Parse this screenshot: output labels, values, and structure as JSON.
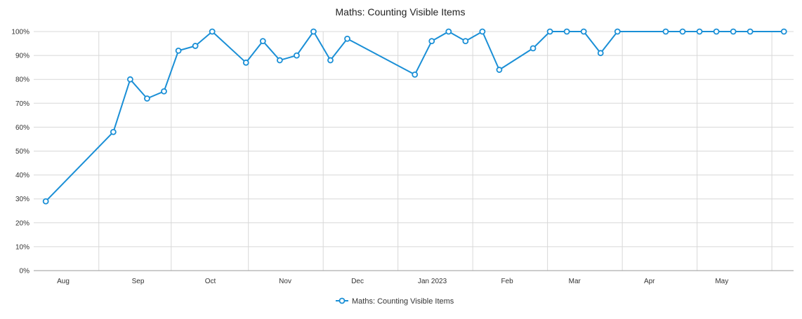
{
  "chart_data": {
    "type": "line",
    "title": "Maths: Counting Visible Items",
    "xlabel": "",
    "ylabel": "",
    "ylim": [
      0,
      100
    ],
    "y_ticks": [
      0,
      10,
      20,
      30,
      40,
      50,
      60,
      70,
      80,
      90,
      100
    ],
    "y_tick_suffix": "%",
    "x_range": [
      "2022-07-25",
      "2023-06-05"
    ],
    "x_ticks": [
      {
        "date": "2022-08-01",
        "label": "Aug"
      },
      {
        "date": "2022-09-01",
        "label": "Sep"
      },
      {
        "date": "2022-10-01",
        "label": "Oct"
      },
      {
        "date": "2022-11-01",
        "label": "Nov"
      },
      {
        "date": "2022-12-01",
        "label": "Dec"
      },
      {
        "date": "2023-01-01",
        "label": "Jan 2023"
      },
      {
        "date": "2023-02-01",
        "label": "Feb"
      },
      {
        "date": "2023-03-01",
        "label": "Mar"
      },
      {
        "date": "2023-04-01",
        "label": "Apr"
      },
      {
        "date": "2023-05-01",
        "label": "May"
      }
    ],
    "week_gridlines": [
      "2022-08-21",
      "2022-09-20",
      "2022-10-22",
      "2022-11-22",
      "2022-12-23",
      "2023-01-23",
      "2023-02-23",
      "2023-03-26",
      "2023-04-26",
      "2023-05-27"
    ],
    "grid": true,
    "legend": "bottom-center",
    "series": [
      {
        "name": "Maths: Counting Visible Items",
        "color": "#1a8fd6",
        "x": [
          "2022-07-30",
          "2022-08-27",
          "2022-09-03",
          "2022-09-10",
          "2022-09-17",
          "2022-09-23",
          "2022-09-30",
          "2022-10-07",
          "2022-10-21",
          "2022-10-28",
          "2022-11-04",
          "2022-11-11",
          "2022-11-18",
          "2022-11-25",
          "2022-12-02",
          "2022-12-30",
          "2023-01-06",
          "2023-01-13",
          "2023-01-20",
          "2023-01-27",
          "2023-02-03",
          "2023-02-17",
          "2023-02-24",
          "2023-03-03",
          "2023-03-10",
          "2023-03-17",
          "2023-03-24",
          "2023-04-13",
          "2023-04-20",
          "2023-04-27",
          "2023-05-04",
          "2023-05-11",
          "2023-05-18",
          "2023-06-01"
        ],
        "values": [
          29,
          58,
          80,
          72,
          75,
          92,
          94,
          100,
          87,
          96,
          88,
          90,
          100,
          88,
          97,
          82,
          96,
          100,
          96,
          100,
          84,
          93,
          100,
          100,
          100,
          91,
          100,
          100,
          100,
          100,
          100,
          100,
          100,
          100
        ]
      }
    ]
  }
}
